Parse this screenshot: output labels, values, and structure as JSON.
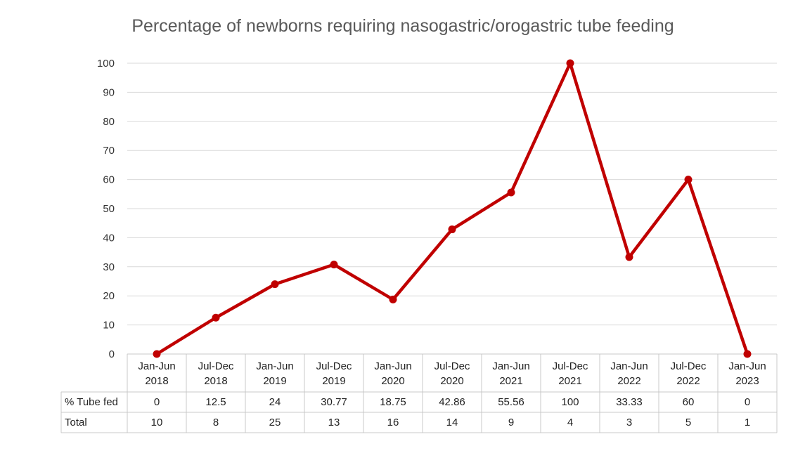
{
  "chart_data": {
    "type": "line",
    "title": "Percentage of newborns requiring nasogastric/orogastric tube feeding",
    "categories": [
      [
        "Jan-Jun",
        "2018"
      ],
      [
        "Jul-Dec",
        "2018"
      ],
      [
        "Jan-Jun",
        "2019"
      ],
      [
        "Jul-Dec",
        "2019"
      ],
      [
        "Jan-Jun",
        "2020"
      ],
      [
        "Jul-Dec",
        "2020"
      ],
      [
        "Jan-Jun",
        "2021"
      ],
      [
        "Jul-Dec",
        "2021"
      ],
      [
        "Jan-Jun",
        "2022"
      ],
      [
        "Jul-Dec",
        "2022"
      ],
      [
        "Jan-Jun",
        "2023"
      ]
    ],
    "series": [
      {
        "name": "% Tube fed",
        "values": [
          0,
          12.5,
          24,
          30.77,
          18.75,
          42.86,
          55.56,
          100,
          33.33,
          60,
          0
        ],
        "color": "#c00000"
      }
    ],
    "table_rows": [
      {
        "label": "% Tube fed",
        "values": [
          "0",
          "12.5",
          "24",
          "30.77",
          "18.75",
          "42.86",
          "55.56",
          "100",
          "33.33",
          "60",
          "0"
        ]
      },
      {
        "label": "Total",
        "values": [
          "10",
          "8",
          "25",
          "13",
          "16",
          "14",
          "9",
          "4",
          "3",
          "5",
          "1"
        ]
      }
    ],
    "ylim": [
      0,
      100
    ],
    "yticks": [
      0,
      10,
      20,
      30,
      40,
      50,
      60,
      70,
      80,
      90,
      100
    ],
    "grid": true,
    "xlabel": "",
    "ylabel": ""
  }
}
